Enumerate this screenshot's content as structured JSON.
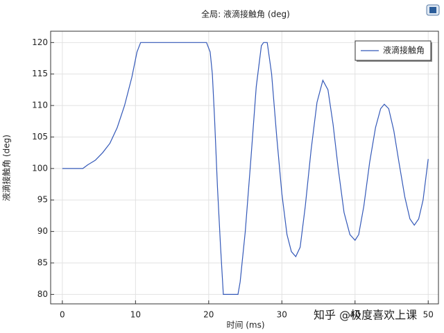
{
  "chart_data": {
    "type": "line",
    "title": "全局: 液滴接触角 (deg)",
    "x_label": "时间 (ms)",
    "y_label": "液滴接触角 (deg)",
    "watermark": "知乎 @极度喜欢上课",
    "x": [
      0,
      2.8,
      3.5,
      4.5,
      5.5,
      6.5,
      7.5,
      8.5,
      9.5,
      10.2,
      10.7,
      11,
      19.7,
      20.2,
      20.5,
      20.8,
      21.2,
      21.6,
      22,
      24,
      24.3,
      25,
      25.8,
      26.5,
      27.2,
      27.5,
      28,
      28.6,
      29.3,
      30,
      30.7,
      31.3,
      31.9,
      32.5,
      33.2,
      34,
      34.8,
      35.6,
      36.3,
      37,
      37.7,
      38.5,
      39.3,
      40,
      40.5,
      41.2,
      42,
      42.8,
      43.5,
      44,
      44.6,
      45.3,
      46,
      46.8,
      47.5,
      48.1,
      48.7,
      49.3,
      50
    ],
    "series": [
      {
        "name": "液滴接触角",
        "color": "#3358b8",
        "values": [
          100,
          100,
          100.6,
          101.3,
          102.5,
          104,
          106.5,
          110,
          114.5,
          118.5,
          120,
          120,
          120,
          118.5,
          115,
          108,
          97,
          88,
          80,
          80,
          82,
          90,
          102,
          113,
          119.5,
          120,
          120,
          115,
          105,
          96,
          89.5,
          86.8,
          86,
          87.5,
          94,
          103,
          110.5,
          114,
          112.5,
          107,
          100,
          93,
          89.5,
          88.6,
          89.5,
          94,
          101,
          106.5,
          109.5,
          110.2,
          109.5,
          106,
          101,
          95.5,
          92,
          91,
          92,
          95,
          101.5
        ]
      }
    ],
    "xlim": [
      -1.6,
      51.4
    ],
    "ylim": [
      78.5,
      121.8
    ],
    "xticks": [
      0,
      10,
      20,
      30,
      40,
      50
    ],
    "yticks": [
      80,
      85,
      90,
      95,
      100,
      105,
      110,
      115,
      120
    ],
    "grid": true,
    "legend": "upper-right"
  }
}
